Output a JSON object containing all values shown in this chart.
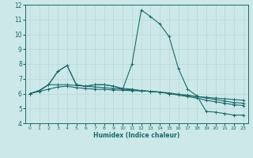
{
  "xlabel": "Humidex (Indice chaleur)",
  "xlim": [
    -0.5,
    23.5
  ],
  "ylim": [
    4,
    12
  ],
  "yticks": [
    4,
    5,
    6,
    7,
    8,
    9,
    10,
    11,
    12
  ],
  "xticks": [
    0,
    1,
    2,
    3,
    4,
    5,
    6,
    7,
    8,
    9,
    10,
    11,
    12,
    13,
    14,
    15,
    16,
    17,
    18,
    19,
    20,
    21,
    22,
    23
  ],
  "bg_color": "#cce8e8",
  "line_color": "#1a6b6b",
  "grid_color": "#b8d8d8",
  "lines": [
    {
      "x": [
        0,
        1,
        2,
        3,
        4,
        5,
        6,
        7,
        8,
        9,
        10,
        11,
        12,
        13,
        14,
        15,
        16,
        17,
        18,
        19,
        20,
        21,
        22,
        23
      ],
      "y": [
        6.0,
        6.2,
        6.6,
        7.5,
        7.9,
        6.6,
        6.5,
        6.6,
        6.6,
        6.5,
        6.3,
        8.0,
        11.65,
        11.2,
        10.7,
        9.85,
        7.7,
        6.3,
        5.85,
        4.8,
        4.75,
        4.65,
        4.55,
        4.55
      ]
    },
    {
      "x": [
        0,
        1,
        2,
        3,
        4,
        5,
        6,
        7,
        8,
        9,
        10,
        11,
        12,
        13,
        14,
        15,
        16,
        17,
        18,
        19,
        20,
        21,
        22,
        23
      ],
      "y": [
        6.0,
        6.2,
        6.6,
        7.5,
        7.9,
        6.6,
        6.5,
        6.6,
        6.6,
        6.5,
        6.35,
        6.3,
        6.2,
        6.15,
        6.1,
        6.0,
        5.95,
        5.85,
        5.8,
        5.75,
        5.7,
        5.65,
        5.6,
        5.55
      ]
    },
    {
      "x": [
        0,
        1,
        2,
        3,
        4,
        5,
        6,
        7,
        8,
        9,
        10,
        11,
        12,
        13,
        14,
        15,
        16,
        17,
        18,
        19,
        20,
        21,
        22,
        23
      ],
      "y": [
        6.0,
        6.2,
        6.6,
        6.6,
        6.6,
        6.55,
        6.5,
        6.45,
        6.4,
        6.35,
        6.3,
        6.25,
        6.2,
        6.15,
        6.1,
        6.05,
        5.95,
        5.9,
        5.8,
        5.7,
        5.6,
        5.5,
        5.4,
        5.35
      ]
    },
    {
      "x": [
        0,
        1,
        2,
        3,
        4,
        5,
        6,
        7,
        8,
        9,
        10,
        11,
        12,
        13,
        14,
        15,
        16,
        17,
        18,
        19,
        20,
        21,
        22,
        23
      ],
      "y": [
        6.0,
        6.15,
        6.3,
        6.45,
        6.5,
        6.4,
        6.35,
        6.3,
        6.28,
        6.25,
        6.22,
        6.2,
        6.18,
        6.15,
        6.1,
        6.0,
        5.9,
        5.8,
        5.7,
        5.55,
        5.45,
        5.35,
        5.25,
        5.2
      ]
    }
  ]
}
